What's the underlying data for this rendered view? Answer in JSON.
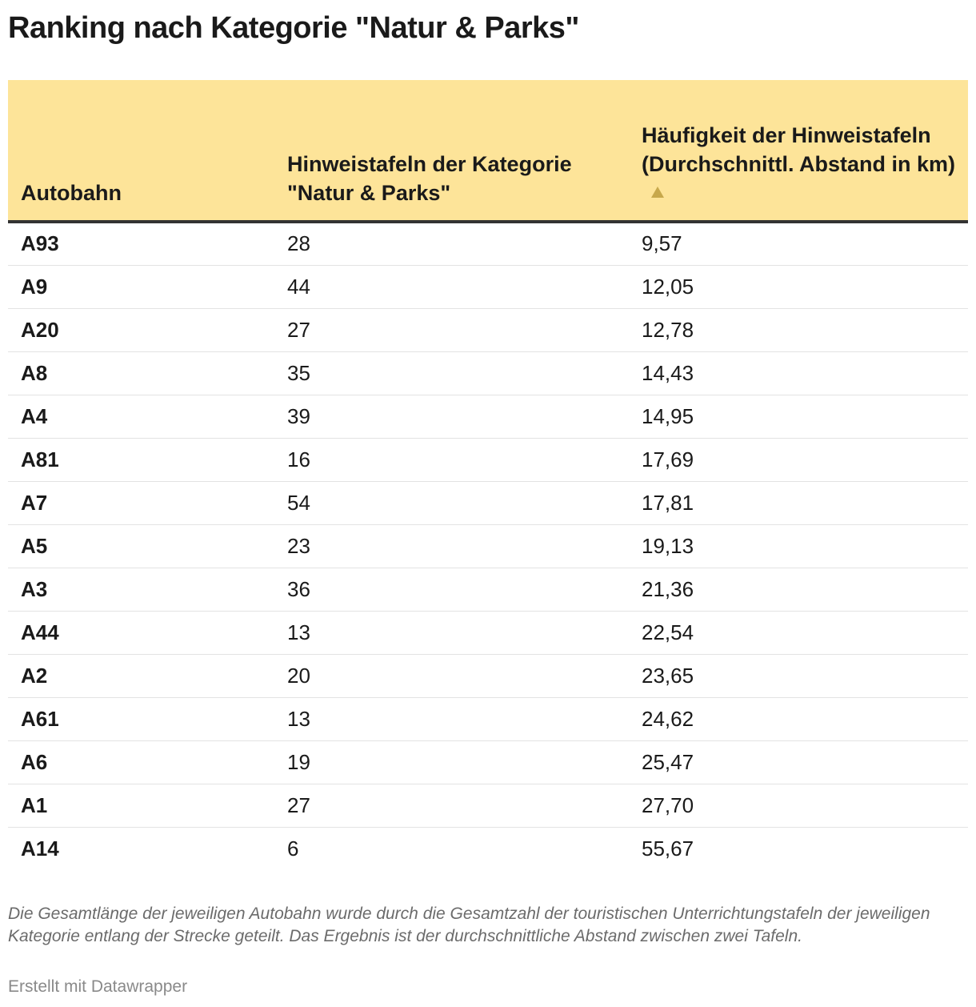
{
  "title": "Ranking nach Kategorie \"Natur & Parks\"",
  "chart_data": {
    "type": "table",
    "columns": [
      "Autobahn",
      "Hinweistafeln der Kategorie \"Natur & Parks\"",
      "Häufigkeit der Hinweistafeln (Durchschnittl. Abstand in km)"
    ],
    "sorted_by": "Häufigkeit der Hinweistafeln (Durchschnittl. Abstand in km)",
    "sort_direction": "ascending",
    "rows": [
      [
        "A93",
        "28",
        "9,57"
      ],
      [
        "A9",
        "44",
        "12,05"
      ],
      [
        "A20",
        "27",
        "12,78"
      ],
      [
        "A8",
        "35",
        "14,43"
      ],
      [
        "A4",
        "39",
        "14,95"
      ],
      [
        "A81",
        "16",
        "17,69"
      ],
      [
        "A7",
        "54",
        "17,81"
      ],
      [
        "A5",
        "23",
        "19,13"
      ],
      [
        "A3",
        "36",
        "21,36"
      ],
      [
        "A44",
        "13",
        "22,54"
      ],
      [
        "A2",
        "20",
        "23,65"
      ],
      [
        "A61",
        "13",
        "24,62"
      ],
      [
        "A6",
        "19",
        "25,47"
      ],
      [
        "A1",
        "27",
        "27,70"
      ],
      [
        "A14",
        "6",
        "55,67"
      ]
    ]
  },
  "notes": "Die Gesamtlänge der jeweiligen Autobahn wurde durch die Gesamtzahl der touristischen Unterrichtungstafeln der jeweiligen Kategorie entlang der Strecke geteilt. Das Ergebnis ist der durchschnittliche Abstand zwischen zwei Tafeln.",
  "credit": "Erstellt mit Datawrapper",
  "colors": {
    "header_background": "#fde499",
    "sort_icon": "#c7a84c",
    "header_rule": "#333333",
    "row_divider": "#e3e3e3",
    "note_text": "#6b6b6b"
  },
  "icons": {
    "sort": "triangle-up-icon"
  }
}
